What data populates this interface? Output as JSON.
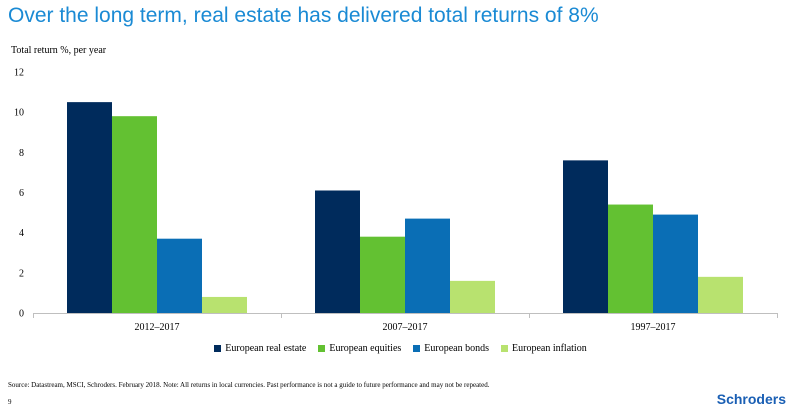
{
  "headline": "Over the long term, real estate has delivered total returns of 8%",
  "footer": {
    "source": "Source: Datastream, MSCI, Schroders.  February 2018.  Note: All returns in local currencies.  Past performance is not a guide to future performance and may not be repeated.",
    "page_number": "9",
    "brand": "Schroders"
  },
  "chart_data": {
    "type": "bar",
    "ylabel": "Total return %, per year",
    "xlabel": "",
    "ylim": [
      0,
      12
    ],
    "yticks": [
      0,
      2,
      4,
      6,
      8,
      10,
      12
    ],
    "grid": false,
    "legend_position": "bottom",
    "categories": [
      "2012–2017",
      "2007–2017",
      "1997–2017"
    ],
    "series": [
      {
        "name": "European real estate",
        "color": "#002b5c",
        "values": [
          10.5,
          6.1,
          7.6
        ]
      },
      {
        "name": "European equities",
        "color": "#63c132",
        "values": [
          9.8,
          3.8,
          5.4
        ]
      },
      {
        "name": "European bonds",
        "color": "#0a6eb5",
        "values": [
          3.7,
          4.7,
          4.9
        ]
      },
      {
        "name": "European inflation",
        "color": "#b8e26f",
        "values": [
          0.8,
          1.6,
          1.8
        ]
      }
    ]
  }
}
